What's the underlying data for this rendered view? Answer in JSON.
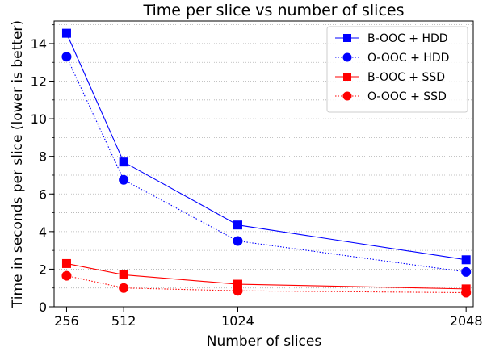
{
  "chart_data": {
    "type": "line",
    "title": "Time per slice vs number of slices",
    "xlabel": "Number of slices",
    "ylabel": "Time in seconds per slice (lower is better)",
    "x": [
      256,
      512,
      1024,
      2048
    ],
    "x_tick_labels": [
      "256",
      "512",
      "1024",
      "2048"
    ],
    "xlim": [
      200,
      2080
    ],
    "ylim": [
      0,
      15.2
    ],
    "y_ticks": [
      0,
      2,
      4,
      6,
      8,
      10,
      12,
      14
    ],
    "y_tick_labels": [
      "0",
      "2",
      "4",
      "6",
      "8",
      "10",
      "12",
      "14"
    ],
    "grid": "horizontal dotted (major and minor)",
    "legend_position": "top-right",
    "series": [
      {
        "name": "B-OOC + HDD",
        "color": "#0000ff",
        "marker": "square",
        "linestyle": "solid",
        "values": [
          14.55,
          7.7,
          4.35,
          2.5
        ]
      },
      {
        "name": "O-OOC + HDD",
        "color": "#0000ff",
        "marker": "circle",
        "linestyle": "dotted",
        "values": [
          13.3,
          6.75,
          3.5,
          1.85
        ]
      },
      {
        "name": "B-OOC + SSD",
        "color": "#ff0000",
        "marker": "square",
        "linestyle": "solid",
        "values": [
          2.3,
          1.7,
          1.2,
          0.95
        ]
      },
      {
        "name": "O-OOC + SSD",
        "color": "#ff0000",
        "marker": "circle",
        "linestyle": "dotted",
        "values": [
          1.65,
          1.0,
          0.85,
          0.75
        ]
      }
    ]
  }
}
